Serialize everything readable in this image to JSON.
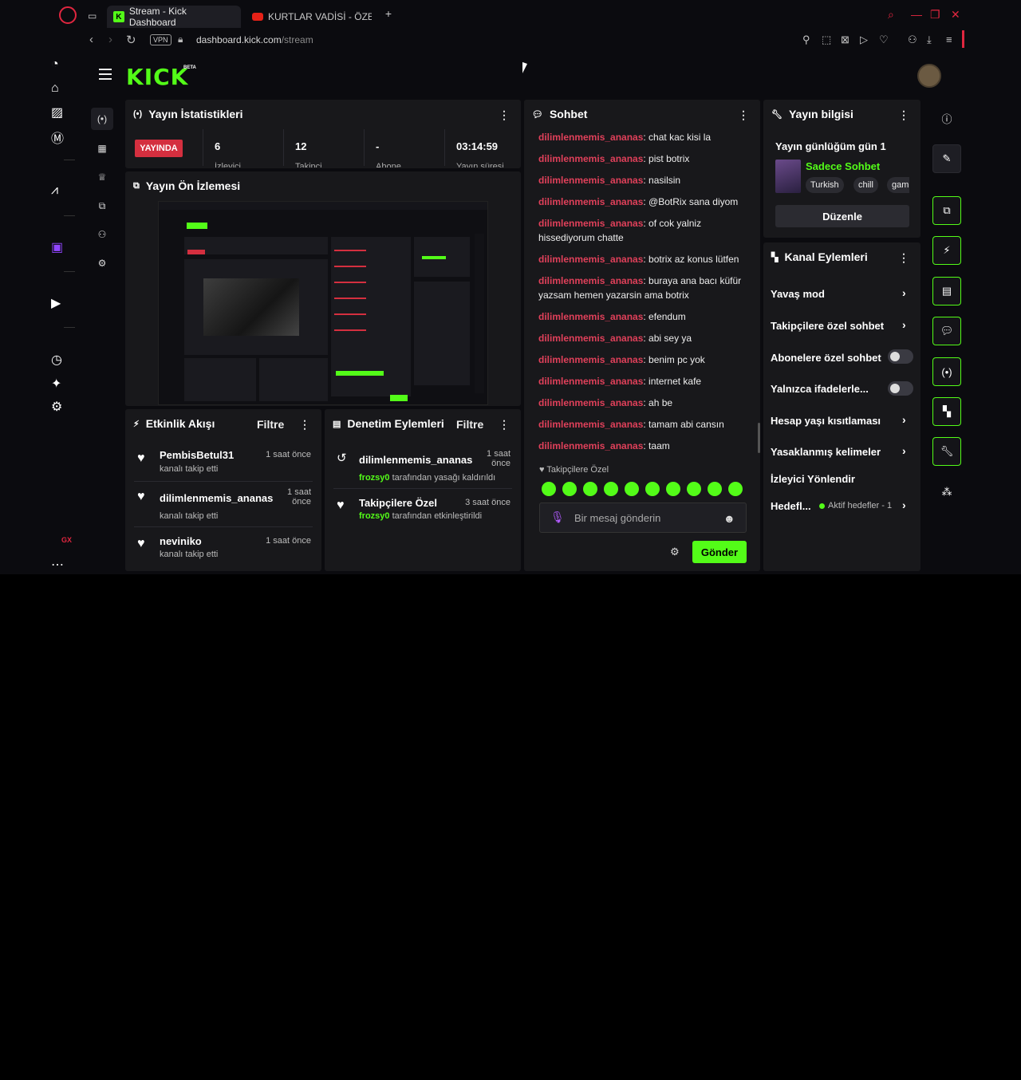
{
  "browser": {
    "tabs": [
      {
        "label": "Stream - Kick Dashboard"
      },
      {
        "label": "KURTLAR VADİSİ - ÖZET"
      }
    ],
    "url_domain": "dashboard.kick.com",
    "url_path": "/stream",
    "vpn_label": "VPN",
    "gx_label": "GX"
  },
  "header": {
    "logo": "KICK",
    "beta": "BETA"
  },
  "stats": {
    "title": "Yayın İstatistikleri",
    "live_badge": "YAYINDA",
    "viewers": "6",
    "followers": "12",
    "subs": "-",
    "uptime": "03:14:59",
    "sub_labels": [
      "İzleyici",
      "Takipçi",
      "Abone",
      "Yayın süresi"
    ]
  },
  "preview": {
    "title": "Yayın Ön İzlemesi"
  },
  "events": {
    "title": "Etkinlik Akışı",
    "filter": "Filtre",
    "items": [
      {
        "name": "PembisBetul31",
        "sub": "kanalı takip etti",
        "time": "1 saat önce"
      },
      {
        "name": "dilimlenmemis_ananas",
        "sub": "kanalı takip etti",
        "time": "1 saat önce"
      },
      {
        "name": "neviniko",
        "sub": "kanalı takip etti",
        "time": "1 saat önce"
      }
    ]
  },
  "moderation": {
    "title": "Denetim Eylemleri",
    "filter": "Filtre",
    "items": [
      {
        "name": "dilimlenmemis_ananas",
        "actor": "frozsy0",
        "sub": "tarafından yasağı kaldırıldı",
        "time": "1 saat önce"
      },
      {
        "name": "Takipçilere Özel",
        "actor": "frozsy0",
        "sub": "tarafından etkinleştirildi",
        "time": "3 saat önce"
      }
    ]
  },
  "chat": {
    "title": "Sohbet",
    "messages": [
      {
        "user": "dilimlenmemis_ananas",
        "text": ": chat kac kisi la"
      },
      {
        "user": "dilimlenmemis_ananas",
        "text": ": pist botrix"
      },
      {
        "user": "dilimlenmemis_ananas",
        "text": ": nasilsin"
      },
      {
        "user": "dilimlenmemis_ananas",
        "text": ": @BotRix sana diyom"
      },
      {
        "user": "dilimlenmemis_ananas",
        "text": ": of cok yalniz hissediyorum chatte"
      },
      {
        "user": "dilimlenmemis_ananas",
        "text": ": botrix az konus lütfen"
      },
      {
        "user": "dilimlenmemis_ananas",
        "text": ": buraya ana bacı küfür yazsam hemen yazarsin ama botrix"
      },
      {
        "user": "dilimlenmemis_ananas",
        "text": ": efendum"
      },
      {
        "user": "dilimlenmemis_ananas",
        "text": ": abi sey ya"
      },
      {
        "user": "dilimlenmemis_ananas",
        "text": ": benim pc yok"
      },
      {
        "user": "dilimlenmemis_ananas",
        "text": ": internet kafe"
      },
      {
        "user": "dilimlenmemis_ananas",
        "text": ": ah be"
      },
      {
        "user": "dilimlenmemis_ananas",
        "text": ": tamam abi cansın"
      },
      {
        "user": "dilimlenmemis_ananas",
        "text": ": taam"
      }
    ],
    "follower_only": "Takipçilere Özel",
    "placeholder": "Bir mesaj gönderin",
    "send_label": "Gönder"
  },
  "stream_info": {
    "title": "Yayın bilgisi",
    "stream_title": "Yayın günlüğüm gün 1",
    "category": "Sadece Sohbet",
    "tags": [
      "Turkish",
      "chill",
      "gam"
    ],
    "edit_label": "Düzenle"
  },
  "channel_actions": {
    "title": "Kanal Eylemleri",
    "items": [
      {
        "label": "Yavaş mod",
        "control": "chevron"
      },
      {
        "label": "Takipçilere özel sohbet",
        "control": "chevron"
      },
      {
        "label": "Abonelere özel sohbet",
        "control": "toggle",
        "on": false
      },
      {
        "label": "Yalnızca ifadelerle...",
        "control": "toggle",
        "on": false
      },
      {
        "label": "Hesap yaşı kısıtlaması",
        "control": "chevron"
      },
      {
        "label": "Yasaklanmış kelimeler",
        "control": "chevron"
      },
      {
        "label": "İzleyici Yönlendir",
        "control": "none"
      },
      {
        "label": "Hedefl...",
        "control": "chevron"
      }
    ],
    "goal_sub": "Aktif hedefler - 1"
  },
  "colors": {
    "kick_green": "#53fc18",
    "opera_red": "#e0263f",
    "username_red": "#e0405a",
    "panel_bg": "#18181b",
    "live_red": "#d42f3f"
  }
}
